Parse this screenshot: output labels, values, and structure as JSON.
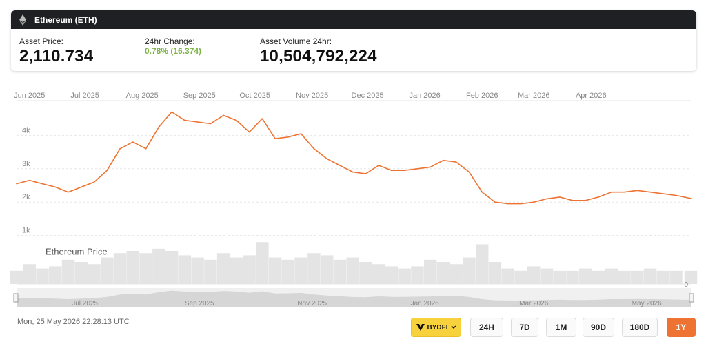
{
  "header": {
    "title": "Ethereum (ETH)"
  },
  "stats": {
    "price_label": "Asset Price:",
    "price_value": "2,110.734",
    "change_label": "24hr Change:",
    "change_value": "0.78% (16.374)",
    "volume_label": "Asset Volume 24hr:",
    "volume_value": "10,504,792,224"
  },
  "colors": {
    "line": "#ee7332",
    "change_positive": "#7cb342",
    "active_button": "#ee7332",
    "exchange_button": "#f7d23d"
  },
  "chart_data": {
    "type": "line",
    "title": "",
    "series": [
      {
        "name": "Ethereum Price",
        "x": [
          "2025-05-25",
          "2025-06-01",
          "2025-06-08",
          "2025-06-15",
          "2025-06-22",
          "2025-06-29",
          "2025-07-06",
          "2025-07-13",
          "2025-07-20",
          "2025-07-27",
          "2025-08-03",
          "2025-08-10",
          "2025-08-17",
          "2025-08-24",
          "2025-08-31",
          "2025-09-07",
          "2025-09-14",
          "2025-09-21",
          "2025-09-28",
          "2025-10-05",
          "2025-10-12",
          "2025-10-19",
          "2025-10-26",
          "2025-11-02",
          "2025-11-09",
          "2025-11-16",
          "2025-11-23",
          "2025-11-30",
          "2025-12-07",
          "2025-12-14",
          "2025-12-21",
          "2025-12-28",
          "2026-01-04",
          "2026-01-11",
          "2026-01-18",
          "2026-01-25",
          "2026-02-01",
          "2026-02-08",
          "2026-02-15",
          "2026-02-22",
          "2026-03-01",
          "2026-03-08",
          "2026-03-15",
          "2026-03-22",
          "2026-03-29",
          "2026-04-05",
          "2026-04-12",
          "2026-04-19",
          "2026-04-26",
          "2026-05-03",
          "2026-05-10",
          "2026-05-17",
          "2026-05-25"
        ],
        "values": [
          2550,
          2650,
          2550,
          2450,
          2300,
          2450,
          2600,
          2950,
          3600,
          3800,
          3600,
          4250,
          4700,
          4450,
          4400,
          4350,
          4600,
          4450,
          4100,
          4500,
          3900,
          3950,
          4050,
          3600,
          3300,
          3100,
          2900,
          2850,
          3100,
          2950,
          2950,
          3000,
          3050,
          3250,
          3200,
          2900,
          2300,
          2000,
          1950,
          1950,
          2000,
          2100,
          2150,
          2050,
          2050,
          2150,
          2300,
          2300,
          2350,
          2300,
          2250,
          2200,
          2110
        ]
      }
    ],
    "volume": [
      0.3,
      0.45,
      0.35,
      0.4,
      0.55,
      0.5,
      0.45,
      0.6,
      0.7,
      0.75,
      0.7,
      0.8,
      0.75,
      0.65,
      0.6,
      0.55,
      0.7,
      0.6,
      0.65,
      0.95,
      0.6,
      0.55,
      0.6,
      0.7,
      0.65,
      0.55,
      0.6,
      0.5,
      0.45,
      0.4,
      0.35,
      0.4,
      0.55,
      0.5,
      0.45,
      0.6,
      0.9,
      0.5,
      0.35,
      0.3,
      0.4,
      0.35,
      0.3,
      0.3,
      0.35,
      0.3,
      0.35,
      0.3,
      0.3,
      0.35,
      0.3,
      0.3,
      0.3
    ],
    "ylim": [
      0,
      5000
    ],
    "y_ticks": [
      {
        "value": 1000,
        "label": "1k"
      },
      {
        "value": 2000,
        "label": "2k"
      },
      {
        "value": 3000,
        "label": "3k"
      },
      {
        "value": 4000,
        "label": "4k"
      }
    ],
    "x_tick_labels": [
      {
        "date": "2025-06-01",
        "label": "Jun 2025"
      },
      {
        "date": "2025-07-01",
        "label": "Jul 2025"
      },
      {
        "date": "2025-08-01",
        "label": "Aug 2025"
      },
      {
        "date": "2025-09-01",
        "label": "Sep 2025"
      },
      {
        "date": "2025-10-01",
        "label": "Oct 2025"
      },
      {
        "date": "2025-11-01",
        "label": "Nov 2025"
      },
      {
        "date": "2025-12-01",
        "label": "Dec 2025"
      },
      {
        "date": "2026-01-01",
        "label": "Jan 2026"
      },
      {
        "date": "2026-02-01",
        "label": "Feb 2026"
      },
      {
        "date": "2026-03-01",
        "label": "Mar 2026"
      },
      {
        "date": "2026-04-01",
        "label": "Apr 2026"
      }
    ],
    "navigator_labels": [
      {
        "date": "2025-07-01",
        "label": "Jul 2025"
      },
      {
        "date": "2025-09-01",
        "label": "Sep 2025"
      },
      {
        "date": "2025-11-01",
        "label": "Nov 2025"
      },
      {
        "date": "2026-01-01",
        "label": "Jan 2026"
      },
      {
        "date": "2026-03-01",
        "label": "Mar 2026"
      },
      {
        "date": "2026-05-01",
        "label": "May 2026"
      }
    ],
    "volume_axis_label": "0",
    "grid": true
  },
  "footer": {
    "timestamp": "Mon, 25 May 2026 22:28:13 UTC"
  },
  "exchange": {
    "label": "BYDFI"
  },
  "ranges": [
    "24H",
    "7D",
    "1M",
    "90D",
    "180D",
    "1Y"
  ],
  "active_range": "1Y"
}
